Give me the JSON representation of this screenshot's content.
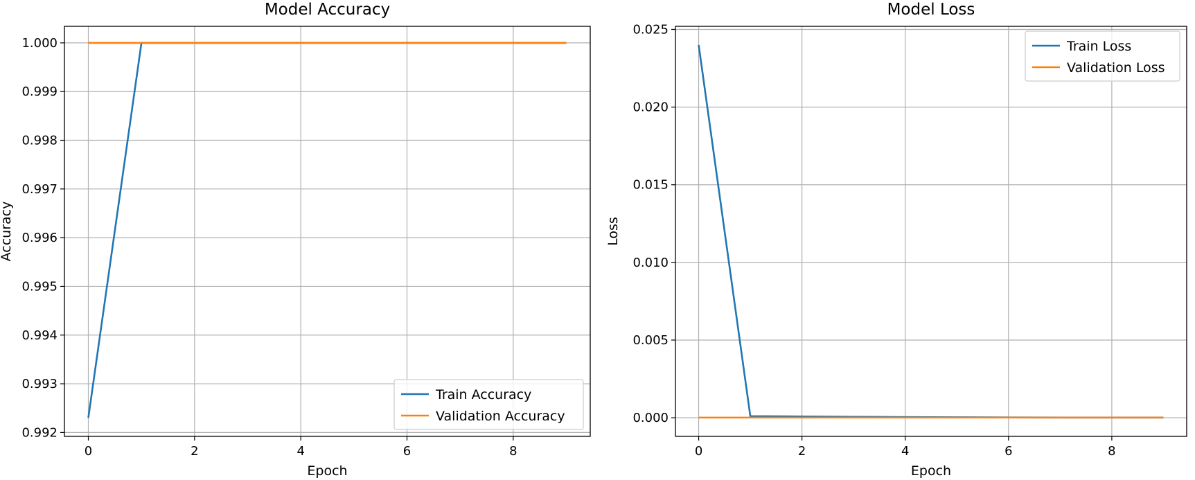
{
  "chart_data": [
    {
      "type": "line",
      "title": "Model Accuracy",
      "xlabel": "Epoch",
      "ylabel": "Accuracy",
      "xlim": [
        -0.45,
        9.45
      ],
      "ylim": [
        0.99192,
        1.00034
      ],
      "xticks": [
        0,
        2,
        4,
        6,
        8
      ],
      "xtick_labels": [
        "0",
        "2",
        "4",
        "6",
        "8"
      ],
      "yticks": [
        0.992,
        0.993,
        0.994,
        0.995,
        0.996,
        0.997,
        0.998,
        0.999,
        1.0
      ],
      "ytick_labels": [
        "0.992",
        "0.993",
        "0.994",
        "0.995",
        "0.996",
        "0.997",
        "0.998",
        "0.999",
        "1.000"
      ],
      "grid": true,
      "legend_position": "lower-right",
      "x": [
        0,
        1,
        2,
        3,
        4,
        5,
        6,
        7,
        8,
        9
      ],
      "series": [
        {
          "name": "Train Accuracy",
          "color": "#1f77b4",
          "values": [
            0.9923,
            1.0,
            1.0,
            1.0,
            1.0,
            1.0,
            1.0,
            1.0,
            1.0,
            1.0
          ]
        },
        {
          "name": "Validation Accuracy",
          "color": "#ff7f0e",
          "values": [
            1.0,
            1.0,
            1.0,
            1.0,
            1.0,
            1.0,
            1.0,
            1.0,
            1.0,
            1.0
          ]
        }
      ]
    },
    {
      "type": "line",
      "title": "Model Loss",
      "xlabel": "Epoch",
      "ylabel": "Loss",
      "xlim": [
        -0.45,
        9.45
      ],
      "ylim": [
        -0.0012,
        0.0252
      ],
      "xticks": [
        0,
        2,
        4,
        6,
        8
      ],
      "xtick_labels": [
        "0",
        "2",
        "4",
        "6",
        "8"
      ],
      "yticks": [
        0.0,
        0.005,
        0.01,
        0.015,
        0.02,
        0.025
      ],
      "ytick_labels": [
        "0.000",
        "0.005",
        "0.010",
        "0.015",
        "0.020",
        "0.025"
      ],
      "grid": true,
      "legend_position": "upper-right",
      "x": [
        0,
        1,
        2,
        3,
        4,
        5,
        6,
        7,
        8,
        9
      ],
      "series": [
        {
          "name": "Train Loss",
          "color": "#1f77b4",
          "values": [
            0.024,
            0.0001,
            8e-05,
            6e-05,
            4e-05,
            3e-05,
            2e-05,
            1e-05,
            1e-05,
            1e-05
          ]
        },
        {
          "name": "Validation Loss",
          "color": "#ff7f0e",
          "values": [
            1e-05,
            1e-05,
            1e-05,
            1e-05,
            1e-05,
            1e-05,
            1e-05,
            1e-05,
            1e-05,
            1e-05
          ]
        }
      ]
    }
  ]
}
